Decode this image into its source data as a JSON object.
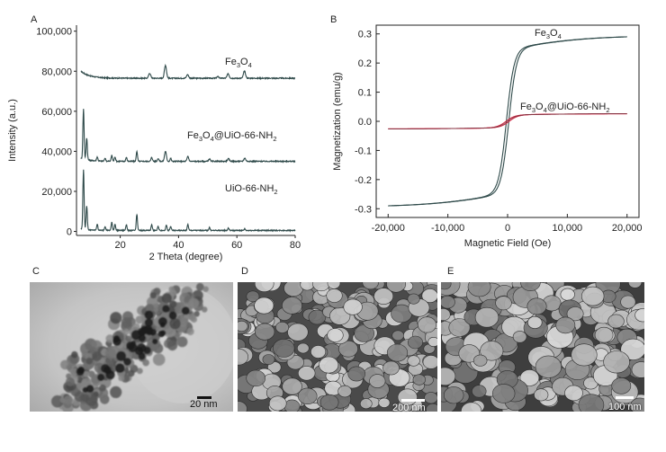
{
  "panels": {
    "A": {
      "label": "A"
    },
    "B": {
      "label": "B"
    },
    "C": {
      "label": "C",
      "scale": "20 nm",
      "image": "tem-micrograph"
    },
    "D": {
      "label": "D",
      "scale": "200 nm",
      "image": "sem-micrograph"
    },
    "E": {
      "label": "E",
      "scale": "100 nm",
      "image": "sem-micrograph"
    }
  },
  "colors": {
    "dark_trace": "#2f4a4a",
    "red_trace": "#d4213d",
    "axis": "#222222"
  },
  "chart_data": [
    {
      "type": "line",
      "panel": "A",
      "xlabel": "2 Theta (degree)",
      "ylabel": "Intensity (a.u.)",
      "xlim": [
        5,
        80
      ],
      "ylim": [
        -2000,
        103000
      ],
      "xticks": [
        20,
        40,
        60,
        80
      ],
      "yticks": [
        0,
        20000,
        40000,
        60000,
        80000,
        100000
      ],
      "ytick_labels": [
        "0",
        "20,000",
        "40,000",
        "60,000",
        "80,000",
        "100,000"
      ],
      "grid": false,
      "series": [
        {
          "name": "Fe3O4",
          "label_main": "Fe",
          "label_sub1": "3",
          "label_mid": "O",
          "label_sub2": "4",
          "label_tail": "",
          "baseline": 76500,
          "start_value": 80000,
          "peaks": [
            [
              30.1,
              2500,
              0.5
            ],
            [
              35.5,
              6500,
              0.5
            ],
            [
              43.1,
              1800,
              0.5
            ],
            [
              53.5,
              800,
              0.5
            ],
            [
              57.0,
              2200,
              0.5
            ],
            [
              62.6,
              3600,
              0.5
            ]
          ]
        },
        {
          "name": "Fe3O4@UiO-66-NH2",
          "label_main": "Fe",
          "label_sub1": "3",
          "label_mid": "O",
          "label_sub2": "4",
          "label_tail": "@UiO-66-NH",
          "label_sub3": "2",
          "baseline": 35000,
          "start_value": 36500,
          "peaks": [
            [
              7.4,
              25000,
              0.3
            ],
            [
              8.5,
              11000,
              0.3
            ],
            [
              12.1,
              2000,
              0.3
            ],
            [
              14.8,
              1500,
              0.3
            ],
            [
              17.1,
              3000,
              0.3
            ],
            [
              18.2,
              2200,
              0.3
            ],
            [
              22.1,
              2000,
              0.3
            ],
            [
              25.7,
              5000,
              0.3
            ],
            [
              30.8,
              2000,
              0.35
            ],
            [
              33.0,
              1500,
              0.35
            ],
            [
              35.5,
              5000,
              0.45
            ],
            [
              37.3,
              1500,
              0.3
            ],
            [
              43.2,
              2500,
              0.4
            ],
            [
              50.6,
              1200,
              0.4
            ],
            [
              57.1,
              1300,
              0.45
            ],
            [
              62.7,
              1600,
              0.45
            ]
          ]
        },
        {
          "name": "UiO-66-NH2",
          "label_main": "UiO-66-NH",
          "label_sub1": "2",
          "label_mid": "",
          "label_sub2": "",
          "label_tail": "",
          "baseline": 500,
          "start_value": 1200,
          "peaks": [
            [
              7.4,
              30000,
              0.3
            ],
            [
              8.5,
              12000,
              0.3
            ],
            [
              12.1,
              3000,
              0.3
            ],
            [
              14.8,
              2000,
              0.3
            ],
            [
              17.1,
              4000,
              0.3
            ],
            [
              18.2,
              3000,
              0.3
            ],
            [
              22.1,
              3000,
              0.3
            ],
            [
              25.7,
              8000,
              0.3
            ],
            [
              30.8,
              3000,
              0.3
            ],
            [
              33.0,
              2000,
              0.3
            ],
            [
              35.8,
              2800,
              0.3
            ],
            [
              37.3,
              2000,
              0.3
            ],
            [
              43.2,
              3000,
              0.3
            ],
            [
              50.6,
              1500,
              0.3
            ],
            [
              57.1,
              1200,
              0.3
            ],
            [
              62.7,
              800,
              0.3
            ]
          ]
        }
      ]
    },
    {
      "type": "line",
      "panel": "B",
      "xlabel": "Magnetic Field (Oe)",
      "ylabel": "Magnetization (emu/g)",
      "xlim": [
        -22000,
        22000
      ],
      "ylim": [
        -0.33,
        0.33
      ],
      "xticks": [
        -20000,
        -10000,
        0,
        10000,
        20000
      ],
      "xtick_labels": [
        "-20,000",
        "-10,000",
        "0",
        "10,000",
        "20,000"
      ],
      "yticks": [
        -0.3,
        -0.2,
        -0.1,
        0.0,
        0.1,
        0.2,
        0.3
      ],
      "ytick_labels": [
        "-0.3",
        "-0.2",
        "-0.1",
        "0.0",
        "0.1",
        "0.2",
        "0.3"
      ],
      "grid": false,
      "series": [
        {
          "name": "Fe3O4",
          "label_main": "Fe",
          "label_sub1": "3",
          "label_mid": "O",
          "label_sub2": "4",
          "label_tail": "",
          "ms": 0.29,
          "tanh_scale": 1300,
          "slow_part": 0.15,
          "slow_scale": 13000,
          "coercivity": 200,
          "x_range": [
            -20000,
            20000
          ]
        },
        {
          "name": "Fe3O4@UiO-66-NH2",
          "label_main": "Fe",
          "label_sub1": "3",
          "label_mid": "O",
          "label_sub2": "4",
          "label_tail": "@UiO-66-NH",
          "label_sub3": "2",
          "ms": 0.026,
          "tanh_scale": 1500,
          "slow_part": 0.15,
          "slow_scale": 13000,
          "coercivity": 250,
          "x_range": [
            -20000,
            20000
          ]
        }
      ]
    }
  ]
}
